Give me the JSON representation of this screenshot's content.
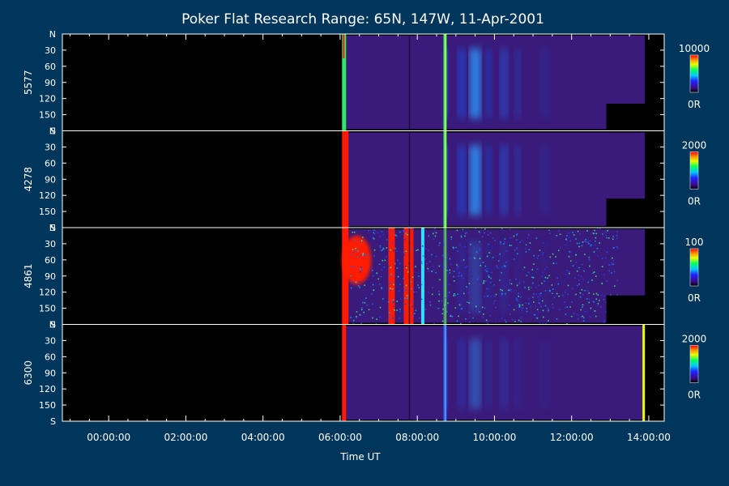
{
  "chart_data": {
    "type": "heatmap",
    "title": "Poker Flat Research Range: 65N, 147W, 11-Apr-2001",
    "xlabel": "Time UT",
    "x_ticks": [
      "00:00:00",
      "02:00:00",
      "04:00:00",
      "06:00:00",
      "08:00:00",
      "10:00:00",
      "12:00:00",
      "14:00:00"
    ],
    "x_tick_hours": [
      0,
      2,
      4,
      6,
      8,
      10,
      12,
      14
    ],
    "x_range_hours": [
      -1.2,
      14.4
    ],
    "y_ticks": [
      "N",
      "30",
      "60",
      "90",
      "120",
      "150",
      "S"
    ],
    "y_tick_values": [
      0,
      30,
      60,
      90,
      120,
      150,
      180
    ],
    "panels": [
      {
        "ylabel": "5577",
        "colorbar_max": "10000",
        "colorbar_min": "0R"
      },
      {
        "ylabel": "4278",
        "colorbar_max": "2000",
        "colorbar_min": "0R"
      },
      {
        "ylabel": "4861",
        "colorbar_max": "100",
        "colorbar_min": "0R"
      },
      {
        "ylabel": "6300",
        "colorbar_max": "2000",
        "colorbar_min": "0R"
      }
    ],
    "data_start_hour": 6.05,
    "data_end_hour": 13.9,
    "colors": {
      "background": "#00365c",
      "frame": "#ffffff",
      "no_data": "#000000",
      "red": "#ff1a00",
      "cyan": "#33ddff",
      "green": "#33ff66",
      "purple": "#3a1a7a"
    }
  }
}
